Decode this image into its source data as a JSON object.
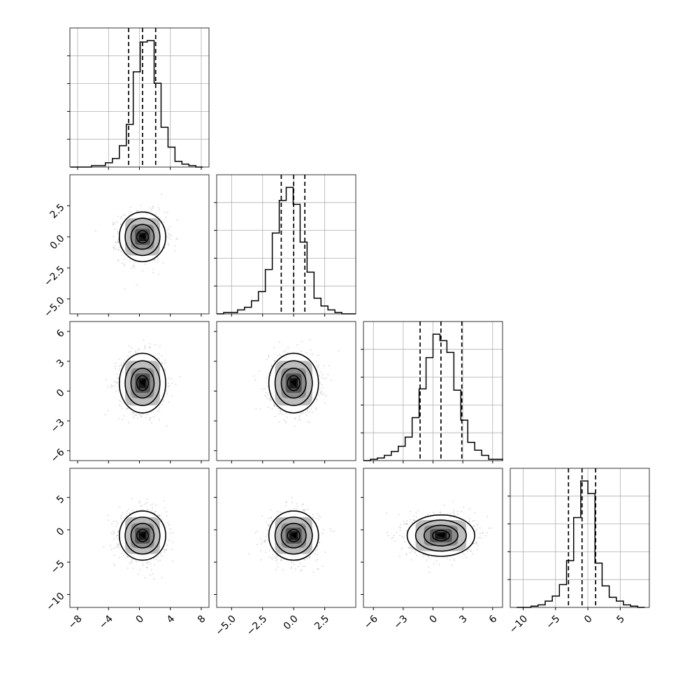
{
  "chart_data": {
    "type": "corner",
    "title": "",
    "variables": [
      {
        "xlim": [
          -9,
          9
        ],
        "x_ticks": [
          -8,
          -4,
          0,
          4,
          8
        ],
        "x_tick_labels": [
          "−8",
          "−4",
          "0",
          "4",
          "8"
        ],
        "y_ticks": [],
        "y_tick_labels": []
      },
      {
        "xlim": [
          -6.2,
          5.0
        ],
        "x_ticks": [
          -5.0,
          -2.5,
          0.0,
          2.5
        ],
        "x_tick_labels": [
          "−5.0",
          "−2.5",
          "0.0",
          "2.5"
        ],
        "y_ticks": [
          2.5,
          0.0,
          -2.5,
          -5.0
        ],
        "y_tick_labels": [
          "2.5",
          "0.0",
          "−2.5",
          "−5.0"
        ]
      },
      {
        "xlim": [
          -7,
          7
        ],
        "x_ticks": [
          -6,
          -3,
          0,
          3,
          6
        ],
        "x_tick_labels": [
          "−6",
          "−3",
          "0",
          "3",
          "6"
        ],
        "y_ticks": [
          6,
          3,
          0,
          -3,
          -6
        ],
        "y_tick_labels": [
          "6",
          "3",
          "0",
          "−3",
          "−6"
        ]
      },
      {
        "xlim": [
          -12,
          9.5
        ],
        "x_ticks": [
          -10,
          -5,
          0,
          5
        ],
        "x_tick_labels": [
          "−10",
          "−5",
          "0",
          "5"
        ],
        "y_ticks": [
          5,
          0,
          -5,
          -10
        ],
        "y_tick_labels": [
          "5",
          "0",
          "−5",
          "−10"
        ]
      }
    ],
    "histograms": [
      {
        "edges": [
          -8.9,
          -8.0,
          -7.1,
          -6.2,
          -5.3,
          -4.4,
          -3.5,
          -2.6,
          -1.7,
          -0.8,
          0.1,
          1.0,
          1.9,
          2.8,
          3.7,
          4.6,
          5.5,
          6.4,
          7.3,
          8.2
        ],
        "counts": [
          0,
          0,
          0,
          1,
          1,
          3,
          6,
          15,
          30,
          67,
          88,
          89,
          59,
          28,
          14,
          4,
          2,
          1,
          0
        ],
        "quantiles": [
          -1.4,
          0.4,
          2.1
        ]
      },
      {
        "edges": [
          -6.2,
          -5.64,
          -5.08,
          -4.52,
          -3.96,
          -3.4,
          -2.84,
          -2.28,
          -1.72,
          -1.16,
          -0.6,
          -0.04,
          0.52,
          1.08,
          1.64,
          2.2,
          2.76,
          3.32,
          3.88,
          4.44,
          5.0
        ],
        "counts": [
          0,
          1,
          1,
          3,
          5,
          10,
          17,
          34,
          62,
          87,
          97,
          84,
          55,
          32,
          12,
          6,
          3,
          1,
          0,
          0
        ],
        "quantiles": [
          -1.0,
          0.0,
          0.9
        ]
      },
      {
        "edges": [
          -7.0,
          -6.3,
          -5.6,
          -4.9,
          -4.2,
          -3.5,
          -2.8,
          -2.1,
          -1.4,
          -0.7,
          0.0,
          0.7,
          1.4,
          2.1,
          2.8,
          3.5,
          4.2,
          4.9,
          5.6,
          6.3,
          7.0
        ],
        "counts": [
          0,
          1,
          2,
          4,
          7,
          11,
          18,
          33,
          55,
          79,
          97,
          92,
          83,
          54,
          31,
          14,
          8,
          4,
          1,
          1
        ],
        "quantiles": [
          -1.3,
          0.8,
          2.9
        ]
      },
      {
        "edges": [
          -11.0,
          -9.9,
          -8.8,
          -7.7,
          -6.6,
          -5.5,
          -4.4,
          -3.3,
          -2.2,
          -1.1,
          0.0,
          1.1,
          2.2,
          3.3,
          4.4,
          5.5,
          6.6,
          7.7,
          8.8
        ],
        "counts": [
          0,
          0,
          1,
          2,
          5,
          9,
          18,
          37,
          71,
          100,
          90,
          35,
          17,
          8,
          5,
          2,
          1,
          0
        ],
        "quantiles": [
          -3.0,
          -0.9,
          1.2
        ]
      }
    ],
    "pairs": [
      {
        "row": 1,
        "col": 0,
        "center": [
          0.4,
          0.0
        ],
        "sigma": [
          1.5,
          1.0
        ],
        "levels": [
          0.5,
          1.0,
          1.5,
          2.0
        ]
      },
      {
        "row": 2,
        "col": 0,
        "center": [
          0.4,
          0.8
        ],
        "sigma": [
          1.5,
          1.5
        ],
        "levels": [
          0.5,
          1.0,
          1.5,
          2.0
        ]
      },
      {
        "row": 2,
        "col": 1,
        "center": [
          0.0,
          0.8
        ],
        "sigma": [
          1.0,
          1.5
        ],
        "levels": [
          0.5,
          1.0,
          1.5,
          2.0
        ]
      },
      {
        "row": 3,
        "col": 0,
        "center": [
          0.4,
          -0.9
        ],
        "sigma": [
          1.5,
          1.9
        ],
        "levels": [
          0.5,
          1.0,
          1.5,
          2.0
        ]
      },
      {
        "row": 3,
        "col": 1,
        "center": [
          0.0,
          -0.9
        ],
        "sigma": [
          1.0,
          1.9
        ],
        "levels": [
          0.5,
          1.0,
          1.5,
          2.0
        ]
      },
      {
        "row": 3,
        "col": 2,
        "center": [
          0.8,
          -0.9
        ],
        "sigma": [
          1.7,
          1.6
        ],
        "levels": [
          0.5,
          1.0,
          1.5,
          2.0
        ]
      }
    ],
    "grid": true
  }
}
